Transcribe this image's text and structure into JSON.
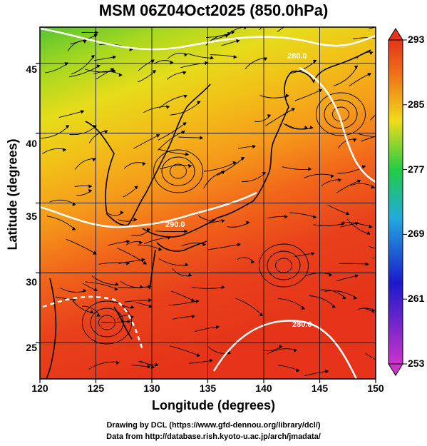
{
  "title": "MSM 06Z04Oct2025 (850.0hPa)",
  "axes": {
    "xlabel": "Longitude (degrees)",
    "ylabel": "Latitude  (degrees)",
    "xticks": [
      "120",
      "125",
      "130",
      "135",
      "140",
      "145",
      "150"
    ],
    "yticks": [
      "25",
      "30",
      "35",
      "40",
      "45"
    ],
    "xlim": [
      120,
      150
    ],
    "ylim": [
      22.4,
      47.6
    ]
  },
  "colorbar": {
    "ticks": [
      "293",
      "285",
      "277",
      "269",
      "261",
      "253"
    ],
    "range": [
      253,
      293
    ],
    "colors": [
      "#cc33cc",
      "#1a1acc",
      "#22aadd",
      "#22cc44",
      "#cce61a",
      "#f07a1a",
      "#e63319"
    ]
  },
  "contour_labels": [
    "290.0",
    "280.0",
    "280.0"
  ],
  "credits": {
    "line1": "Drawing by DCL (https://www.gfd-dennou.org/library/dcl/)",
    "line2": "Data from http://database.rish.kyoto-u.ac.jp/arch/jmadata/"
  }
}
